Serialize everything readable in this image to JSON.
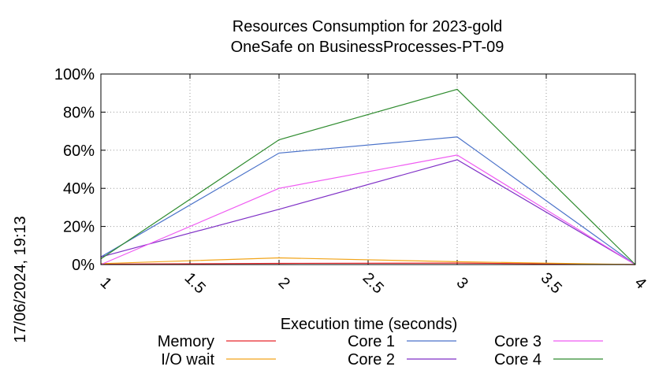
{
  "chart_data": {
    "type": "line",
    "title": "Resources Consumption for 2023-gold",
    "subtitle": "OneSafe on BusinessProcesses-PT-09",
    "xlabel": "Execution time (seconds)",
    "ylabel": "",
    "side_label": "17/06/2024, 19:13",
    "xlim": [
      1,
      4
    ],
    "ylim": [
      0,
      100
    ],
    "x_ticks": [
      1,
      1.5,
      2,
      2.5,
      3,
      3.5,
      4
    ],
    "x_tick_labels": [
      "1",
      "1.5",
      "2",
      "2.5",
      "3",
      "3.5",
      "4"
    ],
    "y_ticks": [
      0,
      20,
      40,
      60,
      80,
      100
    ],
    "y_tick_labels": [
      "0%",
      "20%",
      "40%",
      "60%",
      "80%",
      "100%"
    ],
    "grid": true,
    "legend_position": "bottom",
    "x": [
      1,
      2,
      3,
      4
    ],
    "series": [
      {
        "name": "Memory",
        "color": "#e8262a",
        "values": [
          0.2,
          0.6,
          0.8,
          0.0
        ]
      },
      {
        "name": "I/O wait",
        "color": "#f2a51a",
        "values": [
          0.5,
          3.5,
          1.5,
          0.0
        ]
      },
      {
        "name": "Core 1",
        "color": "#4a72c9",
        "values": [
          4.0,
          58.5,
          67.0,
          0.0
        ]
      },
      {
        "name": "Core 2",
        "color": "#7f2fc6",
        "values": [
          4.0,
          29.0,
          55.0,
          0.0
        ]
      },
      {
        "name": "Core 3",
        "color": "#ef5af2",
        "values": [
          0.0,
          40.0,
          57.5,
          0.0
        ]
      },
      {
        "name": "Core 4",
        "color": "#2e8b2e",
        "values": [
          3.0,
          65.5,
          92.0,
          0.0
        ]
      }
    ]
  }
}
